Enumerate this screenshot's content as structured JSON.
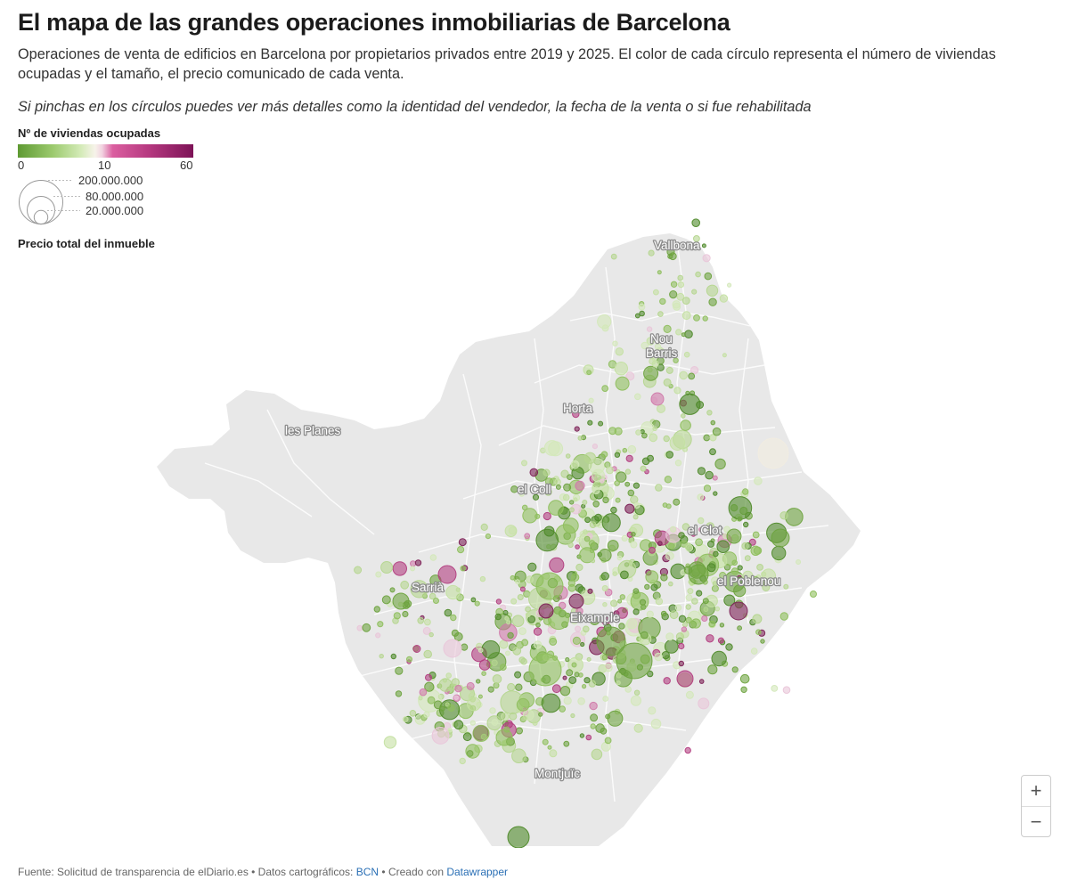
{
  "header": {
    "title": "El mapa de las grandes operaciones inmobiliarias de Barcelona",
    "subtitle": "Operaciones de venta de edificios en Barcelona por propietarios privados entre 2019 y 2025. El color de cada círculo representa el número de viviendas ocupadas y el tamaño, el precio comunicado de cada venta.",
    "note": "Si pinchas en los círculos puedes ver más detalles como la identidad del vendedor, la fecha de la venta o si fue rehabilitada"
  },
  "legend": {
    "color_title": "Nº de viviendas ocupadas",
    "color_ticks": [
      "0",
      "10",
      "60"
    ],
    "color_domain": [
      0,
      10,
      60
    ],
    "colors": {
      "low": "#5e9a32",
      "mid": "#f7f3ea",
      "high": "#7d1357"
    },
    "size_values": [
      "200.000.000",
      "80.000.000",
      "20.000.000"
    ],
    "size_title": "Precio total del inmueble"
  },
  "map": {
    "places": [
      {
        "name": "Vallbona"
      },
      {
        "name": "Nou"
      },
      {
        "name": "Barris"
      },
      {
        "name": "Horta"
      },
      {
        "name": "les Planes"
      },
      {
        "name": "el Coll"
      },
      {
        "name": "el Clot"
      },
      {
        "name": "Sarrià"
      },
      {
        "name": "el Poblenou"
      },
      {
        "name": "Eixample"
      },
      {
        "name": "Montjuïc"
      }
    ]
  },
  "controls": {
    "zoom_in": "+",
    "zoom_out": "−"
  },
  "footer": {
    "source": "Fuente: Solicitud de transparencia de elDiario.es • Datos cartográficos: ",
    "map_link": "BCN",
    "sep": " • Creado con ",
    "tool_link": "Datawrapper"
  }
}
